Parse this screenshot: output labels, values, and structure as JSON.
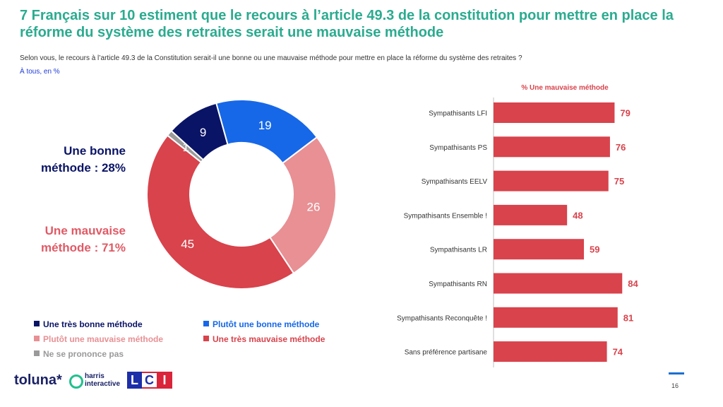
{
  "title": "7 Français sur 10 estiment que le recours à l’article 49.3 de la constitution pour mettre en place la réforme du système des retraites serait une mauvaise méthode",
  "question": "Selon vous, le recours à l’article 49.3 de la Constitution serait-il une bonne ou une mauvaise méthode pour mettre en place la réforme du système des retraites ?",
  "base": "À tous, en %",
  "summary": {
    "good": "Une bonne méthode : 28%",
    "bad": "Une mauvaise méthode : 71%"
  },
  "colors": {
    "title": "#2bab8f",
    "very_good": "#0a1466",
    "rather_good": "#1668e8",
    "rather_bad": "#e89094",
    "very_bad": "#d8434c",
    "no_opinion": "#9a9a9a",
    "bar": "#d8434c"
  },
  "legend": [
    {
      "label": "Une très bonne méthode",
      "color": "#0a1466"
    },
    {
      "label": "Plutôt une bonne méthode",
      "color": "#1668e8"
    },
    {
      "label": "Plutôt une mauvaise méthode",
      "color": "#e89094"
    },
    {
      "label": "Une très mauvaise méthode",
      "color": "#d8434c"
    },
    {
      "label": "Ne se prononce pas",
      "color": "#9a9a9a"
    }
  ],
  "logos": {
    "toluna": "toluna*",
    "harris": "harris interactive",
    "lci": [
      "L",
      "C",
      "I"
    ]
  },
  "page_number": "16",
  "chart_data": [
    {
      "type": "pie",
      "variant": "donut",
      "categories": [
        "Plutôt une bonne méthode",
        "Plutôt une mauvaise méthode",
        "Une très mauvaise méthode",
        "Ne se prononce pas",
        "Une très bonne méthode"
      ],
      "values": [
        19,
        26,
        45,
        1,
        9
      ],
      "colors": [
        "#1668e8",
        "#e89094",
        "#d8434c",
        "#9a9a9a",
        "#0a1466"
      ]
    },
    {
      "type": "bar",
      "orientation": "horizontal",
      "title": "% Une mauvaise méthode",
      "categories": [
        "Sympathisants LFI",
        "Sympathisants PS",
        "Sympathisants EELV",
        "Sympathisants Ensemble !",
        "Sympathisants LR",
        "Sympathisants RN",
        "Sympathisants Reconquête !",
        "Sans préférence partisane"
      ],
      "values": [
        79,
        76,
        75,
        48,
        59,
        84,
        81,
        74
      ],
      "xlim": [
        0,
        100
      ],
      "color": "#d8434c"
    }
  ]
}
